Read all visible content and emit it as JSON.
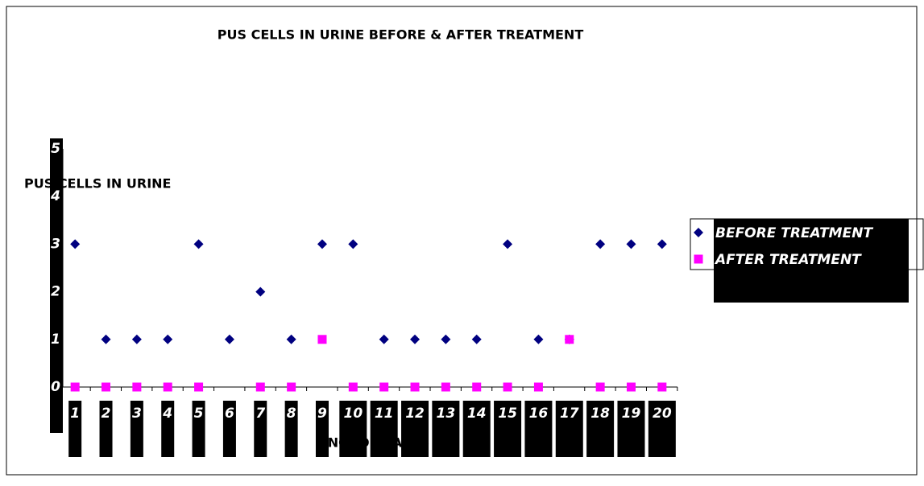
{
  "chart_data": {
    "type": "scatter",
    "title": "PUS CELLS IN URINE BEFORE & AFTER TREATMENT",
    "y_label": "PUS CELLS IN URINE",
    "x_label": "NO. OF CASES",
    "x": [
      1,
      2,
      3,
      4,
      5,
      6,
      7,
      8,
      9,
      10,
      11,
      12,
      13,
      14,
      15,
      16,
      17,
      18,
      19,
      20
    ],
    "series": [
      {
        "name": "BEFORE TREATMENT",
        "color": "#000080",
        "marker": "diamond",
        "values": [
          3,
          1,
          1,
          1,
          3,
          1,
          2,
          1,
          3,
          3,
          1,
          1,
          1,
          1,
          3,
          1,
          1,
          3,
          3,
          3
        ]
      },
      {
        "name": "AFTER TREATMENT",
        "color": "#ff00ff",
        "marker": "square",
        "values": [
          0,
          0,
          0,
          0,
          0,
          null,
          0,
          0,
          1,
          0,
          0,
          0,
          0,
          0,
          0,
          0,
          1,
          0,
          0,
          0
        ]
      }
    ],
    "xlim": [
      0.5,
      20.5
    ],
    "xticks": [
      1,
      2,
      3,
      4,
      5,
      6,
      7,
      8,
      9,
      10,
      11,
      12,
      13,
      14,
      15,
      16,
      17,
      18,
      19,
      20
    ],
    "ylim": [
      0,
      5
    ],
    "yticks": [
      0,
      1,
      2,
      3,
      4,
      5
    ]
  }
}
